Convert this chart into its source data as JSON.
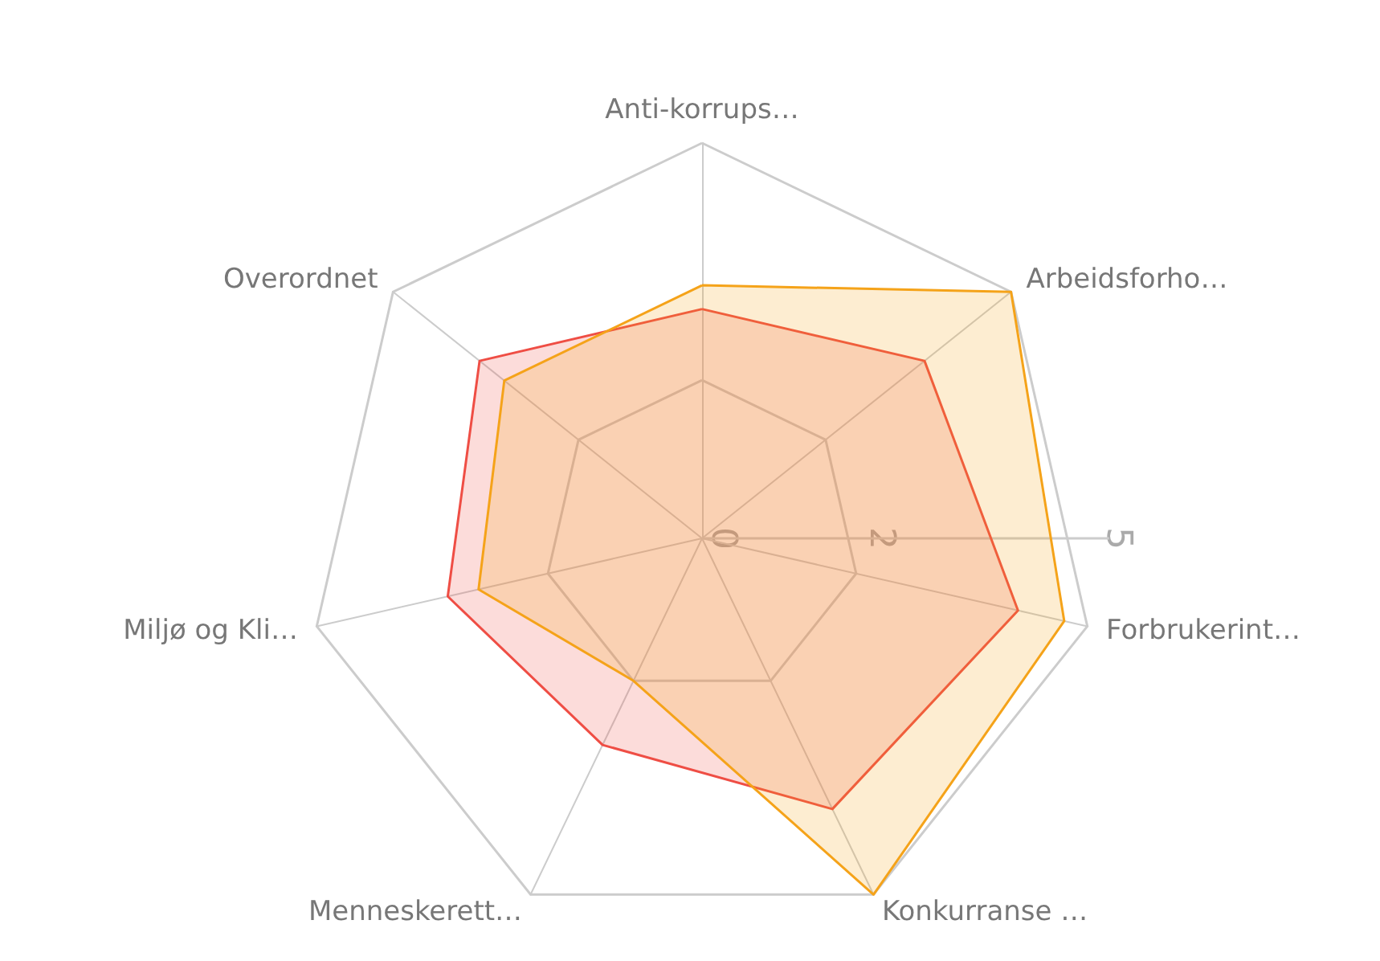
{
  "chart_data": {
    "type": "radar",
    "categories": [
      "Anti-korrups…",
      "Arbeidsforho…",
      "Forbrukerint…",
      "Konkurranse …",
      "Menneskerett…",
      "Miljø og Kli…",
      "Overordnet"
    ],
    "ylim": [
      0,
      5
    ],
    "yticks": [
      0,
      2,
      5
    ],
    "series": [
      {
        "color": "#ef4e45",
        "values": [
          2.9,
          3.6,
          4.1,
          3.8,
          2.9,
          3.3,
          3.6
        ]
      },
      {
        "color": "#f5a31a",
        "values": [
          3.2,
          5,
          4.7,
          5,
          2,
          2.9,
          3.2
        ]
      }
    ]
  }
}
